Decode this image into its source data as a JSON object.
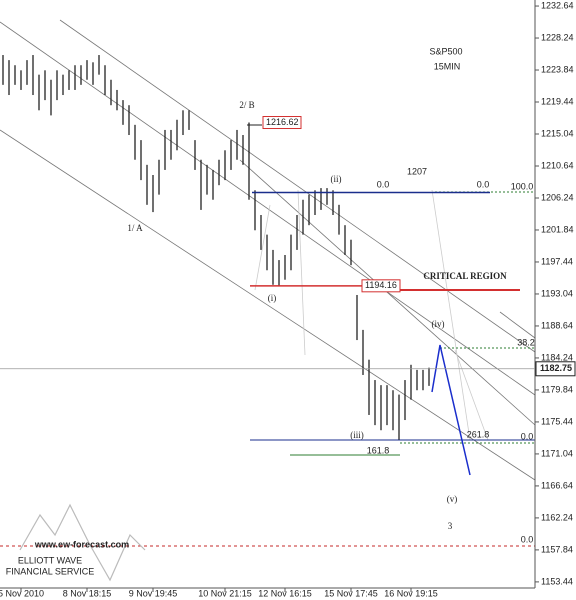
{
  "chart_data": {
    "type": "ohlc",
    "title": "S&P500",
    "subtitle": "15MIN",
    "color": "#222222",
    "categories": [
      null,
      null,
      null,
      "5 Nov 2010",
      null,
      null,
      null,
      null,
      null,
      null,
      null,
      null,
      null,
      null,
      "8 Nov 18:15",
      null,
      null,
      null,
      null,
      null,
      null,
      null,
      null,
      null,
      null,
      "9 Nov 19:45",
      null,
      null,
      null,
      null,
      null,
      null,
      null,
      null,
      null,
      null,
      null,
      "10 Nov 21:15",
      null,
      null,
      null,
      null,
      null,
      null,
      null,
      null,
      null,
      "12 Nov 16:15",
      null,
      null,
      null,
      null,
      null,
      null,
      null,
      null,
      null,
      null,
      "15 Nov 17:45",
      null,
      null,
      null,
      null,
      null,
      null,
      null,
      null,
      null,
      "16 Nov 19:15",
      null,
      null,
      null
    ],
    "high": [
      1225.9,
      1225.2,
      1224.5,
      1223.8,
      1225.2,
      1225.9,
      1223.2,
      1223.8,
      1222.5,
      1223.8,
      1223.2,
      1223.8,
      1224.5,
      1224.5,
      1225.2,
      1224.9,
      1225.9,
      1224.5,
      1222.5,
      1221.1,
      1219.7,
      1219.0,
      1216.3,
      1214.2,
      1210.8,
      1209.4,
      1211.5,
      1215.6,
      1215.6,
      1217.0,
      1218.3,
      1218.3,
      1214.2,
      1211.5,
      1210.8,
      1210.1,
      1211.5,
      1212.8,
      1214.2,
      1215.6,
      1214.9,
      1216.62,
      1207.3,
      1203.9,
      1201.2,
      1199.1,
      1197.7,
      1198.4,
      1201.2,
      1203.9,
      1206.0,
      1206.7,
      1207.3,
      1207.6,
      1207.6,
      1207.3,
      1205.3,
      1202.5,
      1200.5,
      1192.9,
      1188.1,
      1184.0,
      1181.2,
      1180.5,
      1180.5,
      1179.8,
      1179.2,
      1181.2,
      1183.3,
      1182.6,
      1182.6,
      1182.9
    ],
    "low": [
      1221.8,
      1220.4,
      1221.8,
      1221.1,
      1221.8,
      1220.4,
      1218.3,
      1219.7,
      1217.6,
      1219.7,
      1220.4,
      1221.1,
      1221.1,
      1221.8,
      1222.5,
      1221.8,
      1223.2,
      1220.4,
      1219.0,
      1218.3,
      1216.3,
      1214.9,
      1211.5,
      1208.7,
      1205.3,
      1204.3,
      1206.7,
      1210.1,
      1211.5,
      1212.8,
      1214.9,
      1215.6,
      1210.1,
      1204.6,
      1206.7,
      1206.0,
      1208.0,
      1208.7,
      1210.1,
      1211.5,
      1210.8,
      1206.0,
      1201.8,
      1199.1,
      1196.3,
      1194.3,
      1194.16,
      1195.0,
      1196.3,
      1199.1,
      1201.2,
      1202.5,
      1203.9,
      1204.6,
      1205.3,
      1203.9,
      1201.2,
      1198.4,
      1197.0,
      1186.7,
      1181.9,
      1176.4,
      1175.0,
      1174.3,
      1175.0,
      1174.3,
      1173.0,
      1175.7,
      1178.5,
      1179.8,
      1179.8,
      1180.4
    ],
    "ylim": [
      1152.6,
      1233.47
    ],
    "yticks": [
      1232.64,
      1228.24,
      1223.84,
      1219.44,
      1215.04,
      1210.64,
      1206.24,
      1201.84,
      1197.44,
      1193.04,
      1188.64,
      1184.24,
      1179.84,
      1175.44,
      1171.04,
      1166.64,
      1162.24,
      1157.84,
      1153.44
    ],
    "last_price": 1182.75,
    "levels": [
      {
        "value": 1216.62
      },
      {
        "value": 1207
      },
      {
        "value": 1194.16
      }
    ],
    "labels": [
      "1/ A",
      "2/ B",
      "(i)",
      "(ii)",
      "(iii)",
      "(iv)",
      "(v)",
      "3",
      "CRITICAL REGION",
      "0.0",
      "0.0",
      "100.0",
      "38.2",
      "261.8",
      "0.0",
      "161.8",
      "0.0"
    ],
    "watermark": [
      "www.ew-forecast.com",
      "ELLIOTT WAVE",
      "FINANCIAL SERVICE"
    ]
  }
}
